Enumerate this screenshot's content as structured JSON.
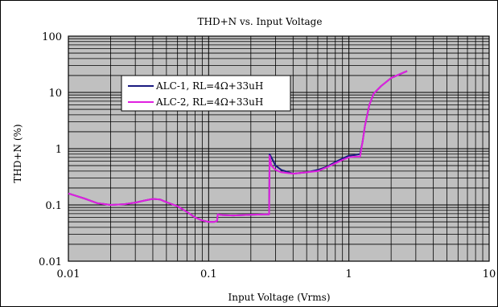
{
  "chart_data": {
    "type": "line",
    "title": "THD+N vs. Input Voltage",
    "xlabel": "Input Voltage (Vrms)",
    "ylabel": "THD+N (%)",
    "x_scale": "log",
    "y_scale": "log",
    "xlim": [
      0.01,
      10
    ],
    "ylim": [
      0.01,
      100
    ],
    "x_ticks": [
      "0.01",
      "0.1",
      "1",
      "10"
    ],
    "y_ticks": [
      "0.01",
      "0.1",
      "1",
      "10",
      "100"
    ],
    "grid": true,
    "legend_position": "upper-left",
    "plot_background": "#c0c0c0",
    "series": [
      {
        "name": "ALC-1, RL=4Ω+33uH",
        "color": "#1a1a80",
        "points": [
          [
            0.01,
            0.16
          ],
          [
            0.013,
            0.13
          ],
          [
            0.016,
            0.108
          ],
          [
            0.02,
            0.1
          ],
          [
            0.025,
            0.103
          ],
          [
            0.03,
            0.11
          ],
          [
            0.035,
            0.12
          ],
          [
            0.04,
            0.128
          ],
          [
            0.045,
            0.125
          ],
          [
            0.05,
            0.112
          ],
          [
            0.06,
            0.095
          ],
          [
            0.07,
            0.075
          ],
          [
            0.08,
            0.06
          ],
          [
            0.09,
            0.053
          ],
          [
            0.1,
            0.05
          ],
          [
            0.11,
            0.05
          ],
          [
            0.115,
            0.052
          ],
          [
            0.116,
            0.068
          ],
          [
            0.125,
            0.066
          ],
          [
            0.15,
            0.065
          ],
          [
            0.2,
            0.067
          ],
          [
            0.25,
            0.068
          ],
          [
            0.27,
            0.068
          ],
          [
            0.272,
            0.8
          ],
          [
            0.28,
            0.7
          ],
          [
            0.3,
            0.5
          ],
          [
            0.33,
            0.42
          ],
          [
            0.4,
            0.36
          ],
          [
            0.5,
            0.38
          ],
          [
            0.6,
            0.42
          ],
          [
            0.7,
            0.48
          ],
          [
            0.8,
            0.58
          ],
          [
            0.9,
            0.67
          ],
          [
            1.0,
            0.75
          ],
          [
            1.1,
            0.77
          ],
          [
            1.2,
            0.8
          ],
          [
            1.25,
            1.3
          ],
          [
            1.3,
            2.5
          ],
          [
            1.4,
            6
          ],
          [
            1.5,
            9.5
          ],
          [
            1.7,
            13
          ],
          [
            2.0,
            18
          ],
          [
            2.3,
            21
          ],
          [
            2.6,
            24
          ]
        ]
      },
      {
        "name": "ALC-2, RL=4Ω+33uH",
        "color": "#e020e0",
        "points": [
          [
            0.01,
            0.16
          ],
          [
            0.013,
            0.13
          ],
          [
            0.016,
            0.108
          ],
          [
            0.02,
            0.1
          ],
          [
            0.025,
            0.103
          ],
          [
            0.03,
            0.11
          ],
          [
            0.035,
            0.12
          ],
          [
            0.04,
            0.128
          ],
          [
            0.045,
            0.125
          ],
          [
            0.05,
            0.112
          ],
          [
            0.06,
            0.095
          ],
          [
            0.07,
            0.075
          ],
          [
            0.08,
            0.06
          ],
          [
            0.09,
            0.053
          ],
          [
            0.1,
            0.05
          ],
          [
            0.11,
            0.05
          ],
          [
            0.115,
            0.052
          ],
          [
            0.116,
            0.068
          ],
          [
            0.125,
            0.066
          ],
          [
            0.15,
            0.065
          ],
          [
            0.2,
            0.067
          ],
          [
            0.25,
            0.068
          ],
          [
            0.27,
            0.068
          ],
          [
            0.272,
            0.75
          ],
          [
            0.28,
            0.5
          ],
          [
            0.3,
            0.42
          ],
          [
            0.33,
            0.38
          ],
          [
            0.4,
            0.36
          ],
          [
            0.5,
            0.38
          ],
          [
            0.6,
            0.4
          ],
          [
            0.7,
            0.47
          ],
          [
            0.8,
            0.55
          ],
          [
            0.9,
            0.63
          ],
          [
            1.0,
            0.7
          ],
          [
            1.1,
            0.72
          ],
          [
            1.2,
            0.72
          ],
          [
            1.25,
            1.3
          ],
          [
            1.3,
            2.5
          ],
          [
            1.4,
            6
          ],
          [
            1.5,
            9.5
          ],
          [
            1.7,
            13
          ],
          [
            2.0,
            18
          ],
          [
            2.3,
            21
          ],
          [
            2.6,
            24
          ]
        ]
      }
    ]
  }
}
